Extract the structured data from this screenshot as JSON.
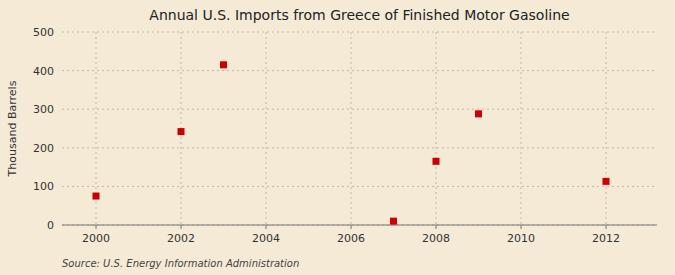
{
  "chart_data": {
    "type": "scatter",
    "title": "Annual U.S. Imports from Greece of Finished Motor Gasoline",
    "ylabel": "Thousand Barrels",
    "source": "Source: U.S. Energy Information Administration",
    "x": [
      2000,
      2002,
      2003,
      2007,
      2008,
      2009,
      2012
    ],
    "values": [
      75,
      242,
      415,
      10,
      165,
      288,
      113
    ],
    "color": "#cc0000",
    "marker": "square",
    "xlim": [
      1999.2,
      2013.2
    ],
    "ylim": [
      0,
      500
    ],
    "xticks": [
      2000,
      2002,
      2004,
      2006,
      2008,
      2010,
      2012
    ],
    "yticks": [
      0,
      100,
      200,
      300,
      400,
      500
    ],
    "grid": true
  }
}
